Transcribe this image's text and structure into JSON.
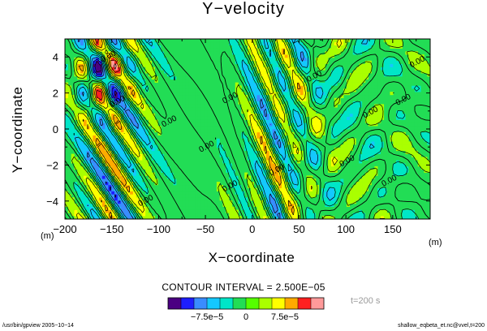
{
  "title": "Y−velocity",
  "footer": {
    "left": "/usr/bin/gpview  2005−10−14",
    "right": "shallow_eqbeta_et.nc@vvel,t=200"
  },
  "contour_interval": "CONTOUR INTERVAL = 2.500E−05",
  "time_label": "t=200 s",
  "colors": {
    "colorbar": [
      "#4b0082",
      "#1e1eff",
      "#3a8cff",
      "#14c8ff",
      "#00e6c8",
      "#22dd55",
      "#55ff00",
      "#aaff00",
      "#ffff00",
      "#ffaa00",
      "#ff2020",
      "#ff9a9a"
    ]
  },
  "chart_data": {
    "type": "contour",
    "title": "Y−velocity",
    "xlabel": "X−coordinate",
    "ylabel": "Y−coordinate",
    "x_unit": "(m)",
    "y_unit": "(m)",
    "xlim": [
      -200,
      190
    ],
    "ylim": [
      -5,
      5
    ],
    "x_ticks": [
      -200,
      -150,
      -100,
      -50,
      0,
      50,
      100,
      150
    ],
    "x_tick_labels": [
      "−200",
      "−150",
      "−100",
      "−50",
      "0",
      "50",
      "100",
      "150"
    ],
    "y_ticks": [
      -4,
      -2,
      0,
      2,
      4
    ],
    "y_tick_labels": [
      "−4",
      "−2",
      "0",
      "2",
      "4"
    ],
    "contour_interval": 2.5e-05,
    "contour_labels": [
      "0.00"
    ],
    "colorbar_ticks": [
      -7.5e-05,
      0,
      7.5e-05
    ],
    "colorbar_tick_labels": [
      "−7.5e−5",
      "0",
      "7.5e−5"
    ],
    "time_label": "t=200 s"
  }
}
